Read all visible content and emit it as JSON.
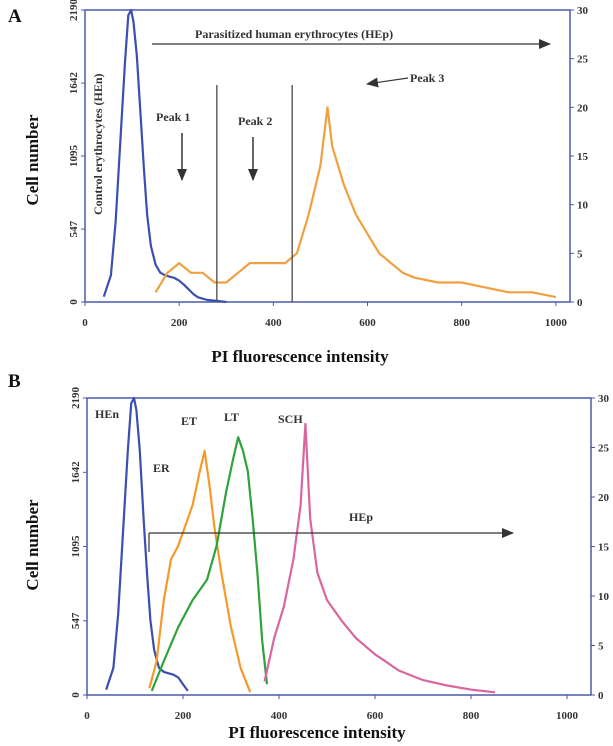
{
  "chart_data": [
    {
      "panel_label": "A",
      "type": "line",
      "xlabel": "PI  fluorescence intensity",
      "ylabel": "Cell number",
      "xlim": [
        0,
        1030
      ],
      "ylim": [
        0,
        2190
      ],
      "y2lim": [
        0,
        30
      ],
      "xticks": [
        0,
        200,
        400,
        600,
        800,
        1000
      ],
      "yticks": [
        0,
        547,
        1095,
        1642,
        2190
      ],
      "y2ticks": [
        0,
        5,
        10,
        15,
        20,
        25,
        30
      ],
      "legend": "none",
      "annotations": {
        "hep_label": "Parasitized human  erythrocytes (HEp)",
        "hen_label": "Control erythrocytes (HEn)",
        "peak1": "Peak 1",
        "peak2": "Peak 2",
        "peak3": "Peak 3"
      },
      "gates_x": [
        280,
        440
      ],
      "series": [
        {
          "color": "#3a4fb0",
          "axis": "left",
          "x": [
            40,
            55,
            65,
            75,
            85,
            92,
            98,
            103,
            110,
            118,
            125,
            132,
            140,
            150,
            160,
            170,
            180,
            190,
            200,
            210,
            220,
            230,
            240,
            260,
            280,
            300
          ],
          "y": [
            40,
            200,
            600,
            1200,
            1800,
            2150,
            2190,
            2100,
            1850,
            1400,
            1000,
            650,
            420,
            280,
            220,
            200,
            190,
            180,
            160,
            130,
            95,
            60,
            35,
            15,
            8,
            0
          ]
        },
        {
          "color": "#f0a040",
          "axis": "right",
          "x": [
            150,
            175,
            200,
            225,
            250,
            275,
            300,
            325,
            350,
            375,
            400,
            425,
            450,
            475,
            500,
            515,
            525,
            550,
            575,
            600,
            625,
            650,
            675,
            700,
            750,
            800,
            850,
            900,
            950,
            1000
          ],
          "y": [
            1,
            3,
            4,
            3,
            3,
            2,
            2,
            3,
            4,
            4,
            4,
            4,
            5,
            9,
            14,
            20,
            16,
            12,
            9,
            7,
            5,
            4,
            3,
            2.5,
            2,
            2,
            1.5,
            1,
            1,
            0.5
          ]
        }
      ]
    },
    {
      "panel_label": "B",
      "type": "line",
      "xlabel": "PI  fluorescence  intensity",
      "ylabel": "Cell number",
      "xlim": [
        0,
        1050
      ],
      "ylim": [
        0,
        2190
      ],
      "y2lim": [
        0,
        30
      ],
      "xticks": [
        0,
        200,
        400,
        600,
        800,
        1000
      ],
      "yticks": [
        0,
        547,
        1095,
        1642,
        2190
      ],
      "y2ticks": [
        0,
        5,
        10,
        15,
        20,
        25,
        30
      ],
      "legend": "none",
      "annotations": {
        "hen": "HEn",
        "er": "ER",
        "et": "ET",
        "lt": "LT",
        "sch": "SCH",
        "hep": "HEp"
      },
      "series": [
        {
          "color": "#3a4fb0",
          "axis": "left",
          "x": [
            40,
            55,
            65,
            75,
            85,
            92,
            98,
            103,
            110,
            118,
            125,
            132,
            140,
            150,
            160,
            170,
            180,
            190,
            200,
            210
          ],
          "y": [
            40,
            200,
            600,
            1200,
            1800,
            2150,
            2190,
            2100,
            1800,
            1300,
            900,
            550,
            330,
            200,
            170,
            160,
            150,
            130,
            80,
            30
          ]
        },
        {
          "color": "#f59a2a",
          "axis": "left",
          "x": [
            130,
            145,
            160,
            175,
            190,
            205,
            220,
            235,
            245,
            255,
            265,
            280,
            300,
            320,
            340
          ],
          "y": [
            50,
            250,
            700,
            1000,
            1100,
            1250,
            1400,
            1650,
            1800,
            1550,
            1250,
            900,
            500,
            200,
            20
          ]
        },
        {
          "color": "#2ea33a",
          "axis": "left",
          "x": [
            135,
            160,
            190,
            220,
            250,
            270,
            290,
            305,
            315,
            325,
            335,
            345,
            355,
            365,
            375
          ],
          "y": [
            30,
            250,
            500,
            700,
            850,
            1100,
            1500,
            1750,
            1900,
            1800,
            1650,
            1300,
            900,
            400,
            80
          ]
        },
        {
          "color": "#d9669e",
          "axis": "left",
          "x": [
            370,
            390,
            410,
            430,
            445,
            455,
            465,
            480,
            500,
            530,
            560,
            600,
            650,
            700,
            750,
            800,
            850
          ],
          "y": [
            100,
            420,
            650,
            1000,
            1400,
            2000,
            1300,
            900,
            700,
            550,
            420,
            300,
            180,
            110,
            70,
            40,
            20
          ]
        }
      ]
    }
  ]
}
